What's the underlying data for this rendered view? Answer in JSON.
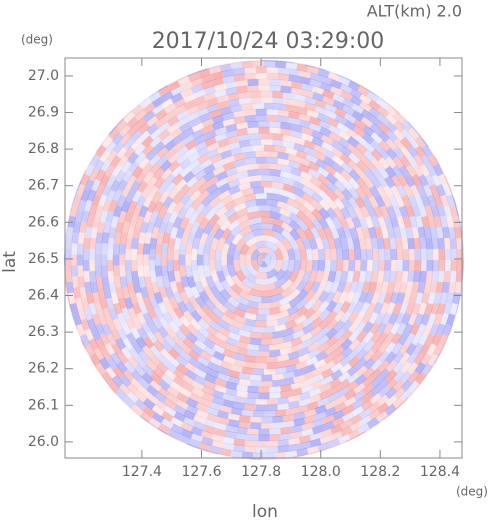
{
  "chart_data": {
    "type": "ppi",
    "title": "2017/10/24 03:29:00",
    "subtitle": "ALT(km) 2.0",
    "x_label": "lon",
    "y_label": "lat",
    "x_unit": "(deg)",
    "y_unit": "(deg)",
    "xlim": [
      127.142,
      128.474
    ],
    "ylim": [
      25.956,
      27.049
    ],
    "xticks": [
      127.4,
      127.6,
      127.8,
      {
        "value": 128.0,
        "label": "128.0"
      },
      128.2,
      128.4
    ],
    "yticks": [
      {
        "value": 26.0,
        "label": "26.0"
      },
      26.1,
      26.2,
      26.3,
      26.4,
      26.5,
      26.6,
      26.7,
      26.8,
      26.9,
      {
        "value": 27.0,
        "label": "27.0"
      }
    ]
  }
}
